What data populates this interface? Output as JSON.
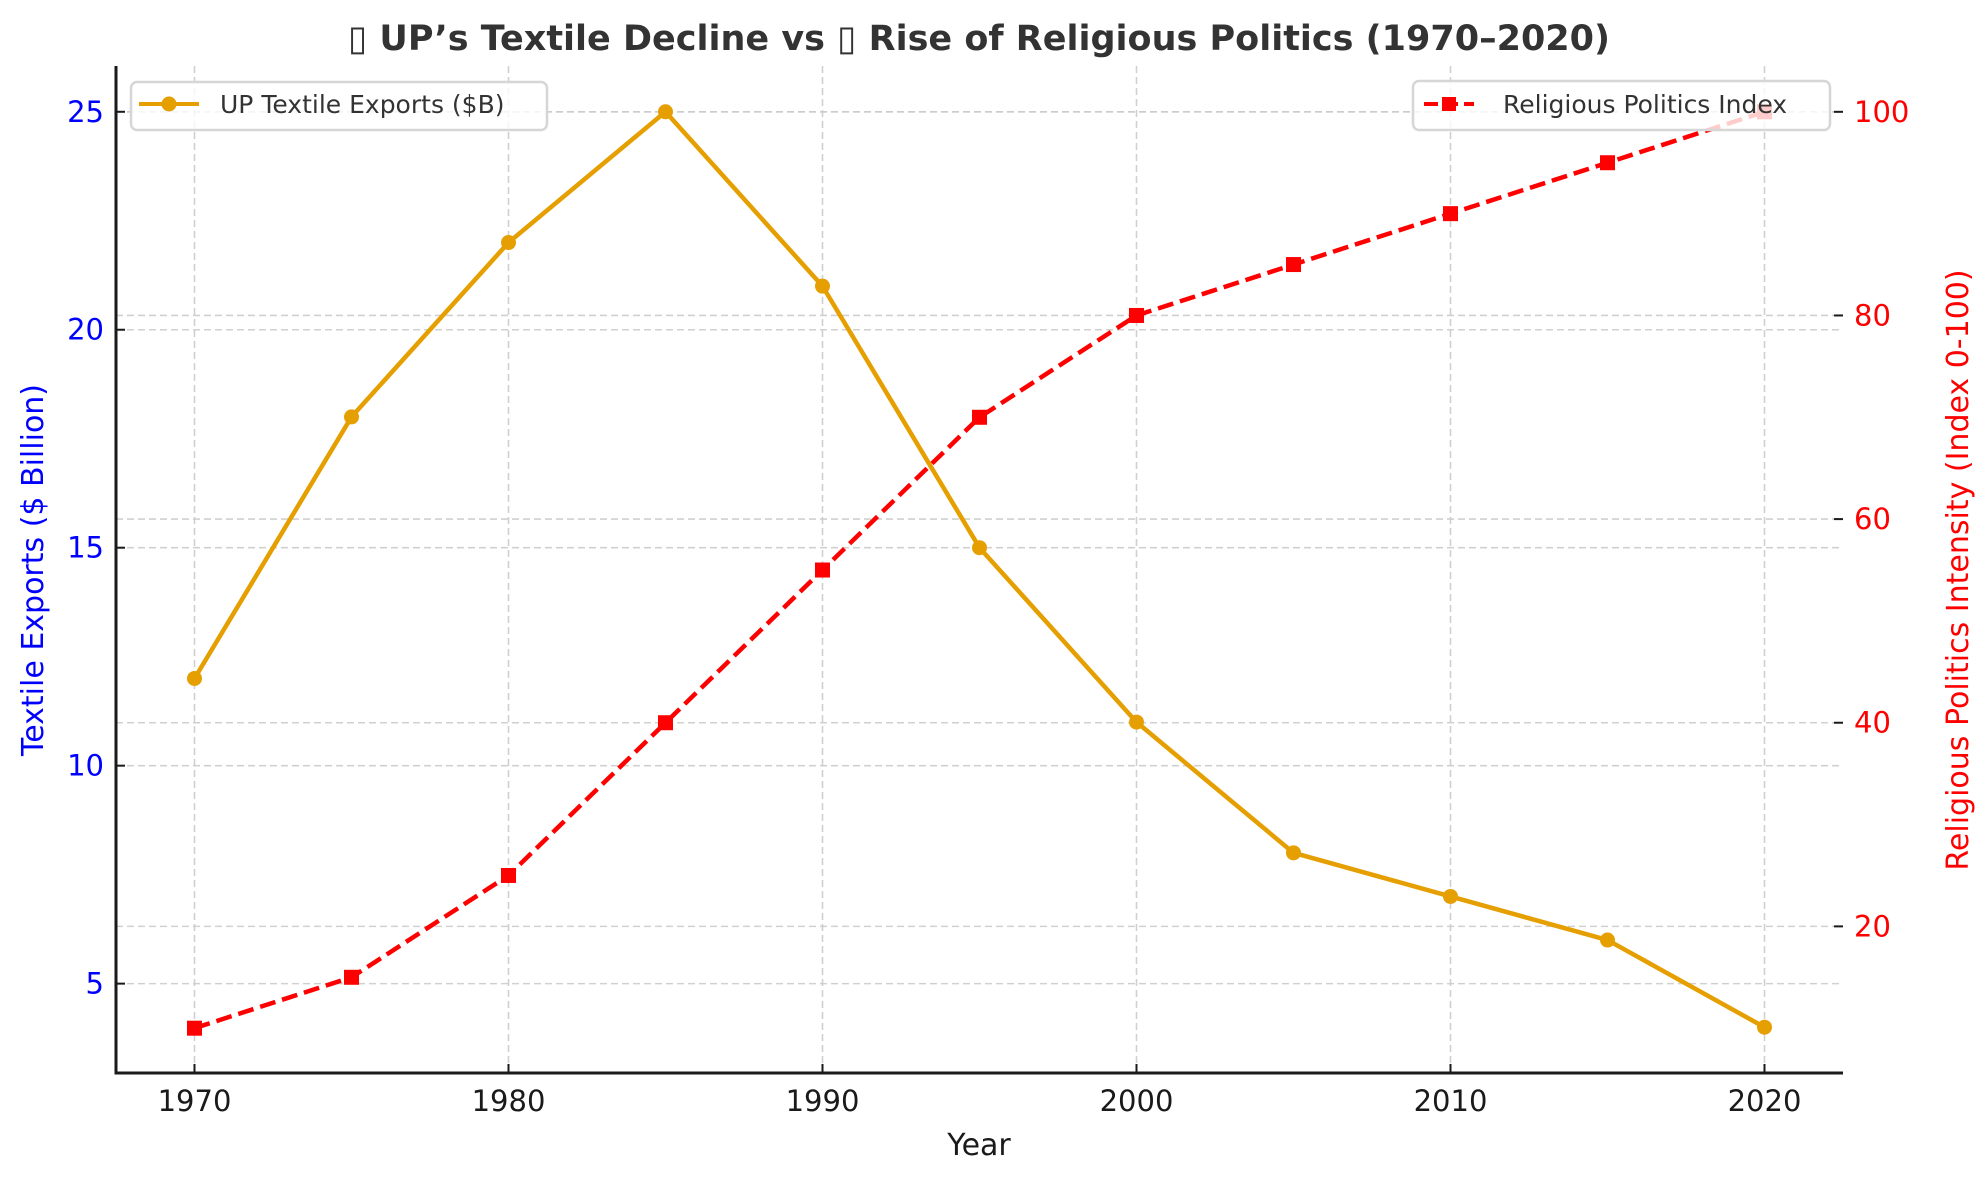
{
  "chart_data": {
    "type": "line",
    "title": "▯ UP’s Textile Decline vs ▯ Rise of Religious Politics (1970–2020)",
    "xlabel": "Year",
    "ylabel_left": "Textile Exports ($ Billion)",
    "ylabel_right": "Religious Politics Intensity (Index 0-100)",
    "x": [
      1970,
      1975,
      1980,
      1985,
      1990,
      1995,
      2000,
      2005,
      2010,
      2015,
      2020
    ],
    "x_ticks": [
      1970,
      1980,
      1990,
      2000,
      2010,
      2020
    ],
    "xlim": [
      1967.5,
      2022.5
    ],
    "ylim_left": [
      2.95,
      26.05
    ],
    "ylim_right": [
      5.6,
      104.5
    ],
    "y_ticks_left": [
      5,
      10,
      15,
      20,
      25
    ],
    "y_ticks_right": [
      20,
      40,
      60,
      80,
      100
    ],
    "grid": true,
    "series": [
      {
        "name": "UP Textile Exports ($B)",
        "axis": "left",
        "color": "#E69F00",
        "marker": "circle",
        "linestyle": "solid",
        "values": [
          12,
          18,
          22,
          25,
          21,
          15,
          11,
          8,
          7,
          6,
          4
        ]
      },
      {
        "name": "Religious Politics Index",
        "axis": "right",
        "color": "#FF0000",
        "marker": "square",
        "linestyle": "dashed",
        "values": [
          10,
          15,
          25,
          40,
          55,
          70,
          80,
          85,
          90,
          95,
          100
        ]
      }
    ],
    "legend_left": {
      "placement": "upper-left",
      "entries": [
        "UP Textile Exports ($B)"
      ]
    },
    "legend_right": {
      "placement": "upper-right",
      "entries": [
        "Religious Politics Index"
      ]
    },
    "colors": {
      "left_axis": "#0000FF",
      "right_axis": "#FF0000",
      "text": "#333333",
      "grid": "#cccccc"
    }
  }
}
